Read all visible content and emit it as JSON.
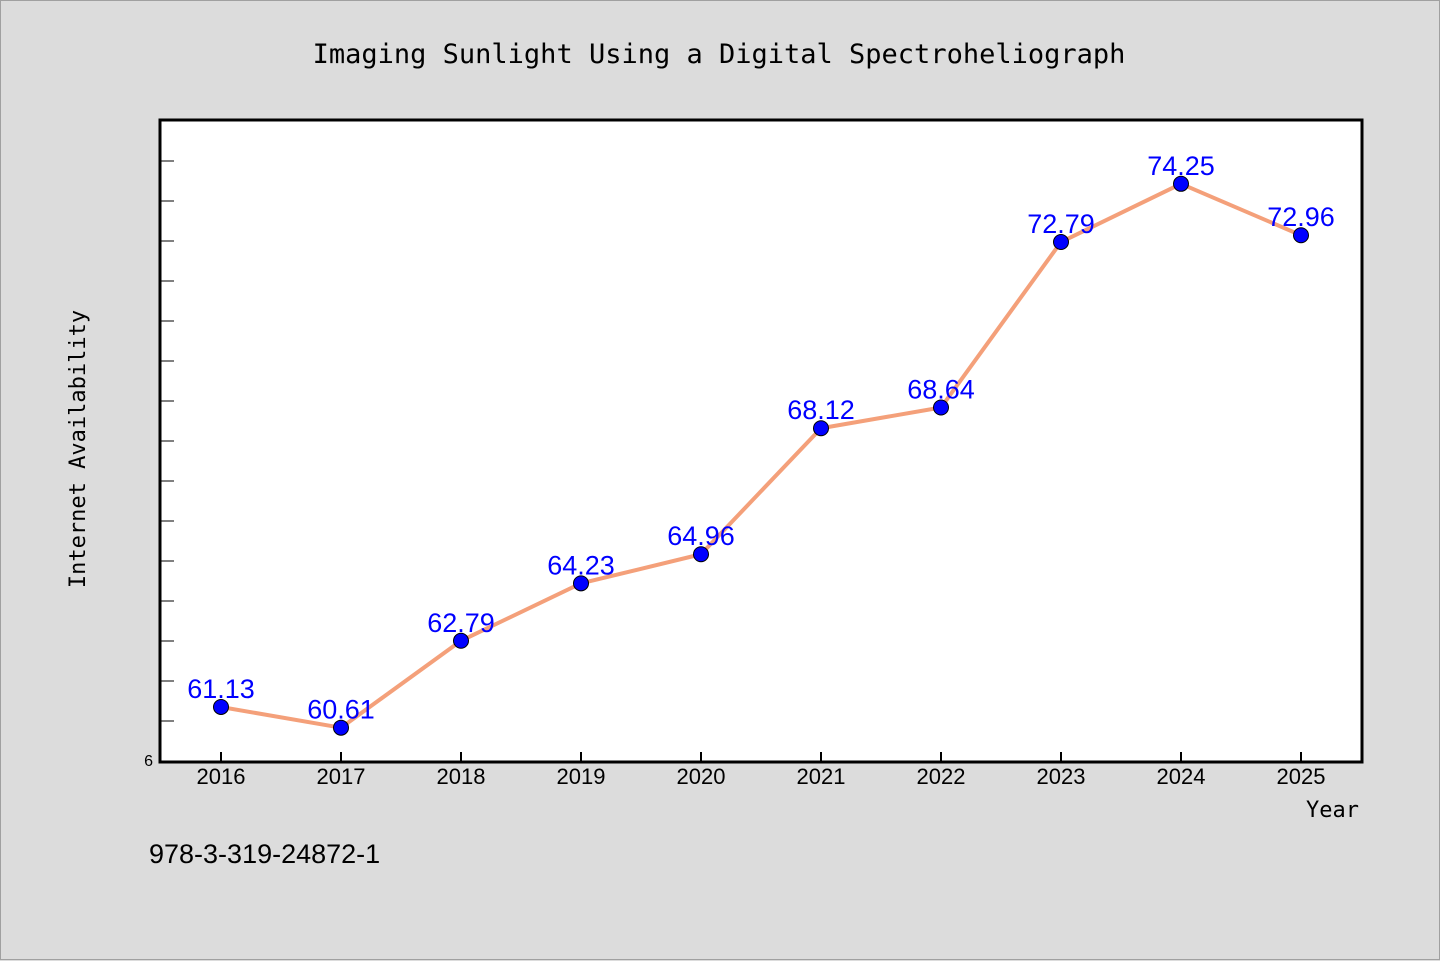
{
  "chart_data": {
    "type": "line",
    "title": "Imaging Sunlight Using a Digital Spectroheliograph",
    "xlabel": "Year",
    "ylabel": "Internet Availability",
    "categories": [
      "2016",
      "2017",
      "2018",
      "2019",
      "2020",
      "2021",
      "2022",
      "2023",
      "2024",
      "2025"
    ],
    "series": [
      {
        "values": [
          61.13,
          60.61,
          62.79,
          64.23,
          64.96,
          68.12,
          68.64,
          72.79,
          74.25,
          72.96
        ],
        "labels": [
          "61.13",
          "60.61",
          "62.79",
          "64.23",
          "64.96",
          "68.12",
          "68.64",
          "72.79",
          "74.25",
          "72.96"
        ],
        "line_color": "#f4a07a",
        "marker_color": "#0000ff"
      }
    ],
    "ylim": [
      59.75,
      75.85
    ],
    "yticks_label": "6",
    "grid": false,
    "legend": false,
    "background": "#ffffff",
    "frame_color": "#000000"
  },
  "footnote": "978-3-319-24872-1"
}
